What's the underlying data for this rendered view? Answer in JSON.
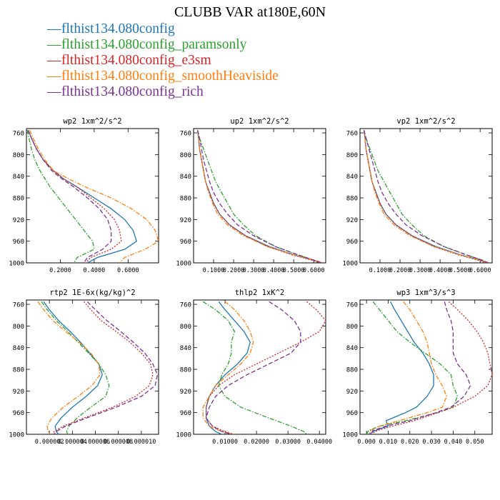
{
  "title": "CLUBB VAR at180E,60N",
  "legend": [
    {
      "label": "flthist134.080config",
      "color": "#1f77b4"
    },
    {
      "label": "flthist134.080config_paramsonly",
      "color": "#2ca02c"
    },
    {
      "label": "flthist134.080config_e3sm",
      "color": "#d62728"
    },
    {
      "label": "flthist134.080config_smoothHeaviside",
      "color": "#ff7f0e"
    },
    {
      "label": "flthist134.080config_rich",
      "color": "#7b3294"
    }
  ],
  "chart_data": [
    {
      "type": "line",
      "title": "wp2  1xm^2/s^2",
      "xlim": [
        0,
        0.78
      ],
      "ylim": [
        1000,
        752
      ],
      "y_reversed": true,
      "xticks": [
        0.2,
        0.4,
        0.6
      ],
      "xtick_labels": [
        "0.2000",
        "0.4000",
        "0.6000"
      ],
      "yticks": [
        760,
        800,
        840,
        880,
        920,
        960,
        1000
      ],
      "y": [
        755,
        770,
        790,
        810,
        830,
        845,
        860,
        880,
        900,
        920,
        940,
        960,
        975,
        990,
        1000
      ],
      "series": [
        {
          "name": "flthist134.080config",
          "color": "#1f77b4",
          "dash": "solid",
          "values": [
            0.01,
            0.03,
            0.06,
            0.1,
            0.16,
            0.22,
            0.3,
            0.4,
            0.5,
            0.58,
            0.63,
            0.65,
            0.58,
            0.42,
            0.36
          ]
        },
        {
          "name": "flthist134.080config_paramsonly",
          "color": "#2ca02c",
          "dash": "dashdot",
          "values": [
            0.005,
            0.015,
            0.03,
            0.05,
            0.08,
            0.11,
            0.14,
            0.19,
            0.24,
            0.29,
            0.34,
            0.39,
            0.4,
            0.3,
            0.28
          ]
        },
        {
          "name": "flthist134.080config_e3sm",
          "color": "#d62728",
          "dash": "dotted",
          "values": [
            0.01,
            0.03,
            0.06,
            0.1,
            0.16,
            0.22,
            0.3,
            0.38,
            0.46,
            0.52,
            0.55,
            0.56,
            0.5,
            0.38,
            0.35
          ]
        },
        {
          "name": "flthist134.080config_smoothHeaviside",
          "color": "#ff7f0e",
          "dash": "dashdot",
          "values": [
            0.02,
            0.04,
            0.07,
            0.11,
            0.16,
            0.25,
            0.35,
            0.5,
            0.62,
            0.71,
            0.76,
            0.78,
            0.7,
            0.58,
            0.55
          ]
        },
        {
          "name": "flthist134.080config_rich",
          "color": "#7b3294",
          "dash": "dashed",
          "values": [
            0.01,
            0.03,
            0.06,
            0.1,
            0.15,
            0.21,
            0.28,
            0.36,
            0.43,
            0.48,
            0.5,
            0.5,
            0.45,
            0.36,
            0.34
          ]
        }
      ]
    },
    {
      "type": "line",
      "title": "up2  1xm^2/s^2",
      "xlim": [
        0,
        0.66
      ],
      "ylim": [
        1000,
        752
      ],
      "y_reversed": true,
      "xticks": [
        0.1,
        0.2,
        0.3,
        0.4,
        0.5,
        0.6
      ],
      "xtick_labels": [
        "0.1000",
        "0.2000",
        "0.3000",
        "0.4000",
        "0.5000",
        "0.6000"
      ],
      "yticks": [
        760,
        800,
        840,
        880,
        920,
        960,
        1000
      ],
      "y": [
        755,
        770,
        790,
        810,
        830,
        850,
        870,
        890,
        910,
        930,
        950,
        970,
        985,
        995,
        1000
      ],
      "series": [
        {
          "name": "flthist134.080config",
          "color": "#1f77b4",
          "dash": "solid",
          "values": [
            0.02,
            0.025,
            0.03,
            0.04,
            0.05,
            0.06,
            0.08,
            0.1,
            0.13,
            0.18,
            0.26,
            0.38,
            0.5,
            0.6,
            0.64
          ]
        },
        {
          "name": "flthist134.080config_paramsonly",
          "color": "#2ca02c",
          "dash": "dashdot",
          "values": [
            0.02,
            0.03,
            0.05,
            0.07,
            0.09,
            0.11,
            0.14,
            0.17,
            0.2,
            0.25,
            0.31,
            0.41,
            0.52,
            0.6,
            0.63
          ]
        },
        {
          "name": "flthist134.080config_e3sm",
          "color": "#d62728",
          "dash": "dotted",
          "values": [
            0.02,
            0.025,
            0.03,
            0.04,
            0.05,
            0.06,
            0.08,
            0.1,
            0.13,
            0.18,
            0.26,
            0.37,
            0.49,
            0.59,
            0.63
          ]
        },
        {
          "name": "flthist134.080config_smoothHeaviside",
          "color": "#ff7f0e",
          "dash": "dashdot",
          "values": [
            0.02,
            0.025,
            0.03,
            0.04,
            0.05,
            0.06,
            0.075,
            0.095,
            0.12,
            0.17,
            0.25,
            0.37,
            0.5,
            0.6,
            0.65
          ]
        },
        {
          "name": "flthist134.080config_rich",
          "color": "#7b3294",
          "dash": "dashed",
          "values": [
            0.02,
            0.03,
            0.04,
            0.05,
            0.065,
            0.08,
            0.1,
            0.13,
            0.17,
            0.22,
            0.3,
            0.41,
            0.52,
            0.6,
            0.64
          ]
        }
      ]
    },
    {
      "type": "line",
      "title": "vp2  1xm^2/s^2",
      "xlim": [
        0,
        0.66
      ],
      "ylim": [
        1000,
        752
      ],
      "y_reversed": true,
      "xticks": [
        0.1,
        0.2,
        0.3,
        0.4,
        0.5,
        0.6
      ],
      "xtick_labels": [
        "0.1000",
        "0.2000",
        "0.3000",
        "0.4000",
        "0.5000",
        "0.6000"
      ],
      "yticks": [
        760,
        800,
        840,
        880,
        920,
        960,
        1000
      ],
      "y": [
        755,
        770,
        790,
        810,
        830,
        850,
        870,
        890,
        910,
        930,
        950,
        970,
        985,
        995,
        1000
      ],
      "series": [
        {
          "name": "flthist134.080config",
          "color": "#1f77b4",
          "dash": "solid",
          "values": [
            0.02,
            0.025,
            0.03,
            0.04,
            0.05,
            0.06,
            0.08,
            0.1,
            0.13,
            0.18,
            0.26,
            0.38,
            0.5,
            0.6,
            0.64
          ]
        },
        {
          "name": "flthist134.080config_paramsonly",
          "color": "#2ca02c",
          "dash": "dashdot",
          "values": [
            0.02,
            0.03,
            0.05,
            0.07,
            0.09,
            0.12,
            0.15,
            0.18,
            0.21,
            0.26,
            0.32,
            0.42,
            0.53,
            0.61,
            0.64
          ]
        },
        {
          "name": "flthist134.080config_e3sm",
          "color": "#d62728",
          "dash": "dotted",
          "values": [
            0.02,
            0.025,
            0.03,
            0.04,
            0.05,
            0.06,
            0.08,
            0.1,
            0.13,
            0.18,
            0.26,
            0.37,
            0.49,
            0.59,
            0.63
          ]
        },
        {
          "name": "flthist134.080config_smoothHeaviside",
          "color": "#ff7f0e",
          "dash": "dashdot",
          "values": [
            0.02,
            0.025,
            0.03,
            0.04,
            0.05,
            0.06,
            0.075,
            0.095,
            0.12,
            0.17,
            0.25,
            0.37,
            0.5,
            0.6,
            0.65
          ]
        },
        {
          "name": "flthist134.080config_rich",
          "color": "#7b3294",
          "dash": "dashed",
          "values": [
            0.02,
            0.03,
            0.045,
            0.06,
            0.075,
            0.09,
            0.11,
            0.14,
            0.18,
            0.23,
            0.31,
            0.42,
            0.53,
            0.61,
            0.64
          ]
        }
      ]
    },
    {
      "type": "line",
      "title": "rtp2  1E-6x(kg/kg)^2",
      "xlim": [
        0,
        1.15e-05
      ],
      "ylim": [
        1000,
        752
      ],
      "y_reversed": true,
      "xticks": [
        2e-06,
        4e-06,
        6e-06,
        8e-06,
        1e-05
      ],
      "xtick_labels": [
        "0.000002",
        "0.000004",
        "0.000006",
        "0.000008",
        "0.000010"
      ],
      "yticks": [
        760,
        800,
        840,
        880,
        920,
        960,
        1000
      ],
      "y": [
        755,
        770,
        790,
        810,
        830,
        850,
        870,
        890,
        910,
        930,
        950,
        970,
        985,
        995,
        1000
      ],
      "series": [
        {
          "name": "flthist134.080config",
          "color": "#1f77b4",
          "dash": "solid",
          "values": [
            1.5e-06,
            2e-06,
            2.8e-06,
            3.8e-06,
            4.7e-06,
            5.5e-06,
            6.3e-06,
            6.6e-06,
            6.2e-06,
            5.2e-06,
            4e-06,
            3e-06,
            2.5e-06,
            2.6e-06,
            2.8e-06
          ]
        },
        {
          "name": "flthist134.080config_paramsonly",
          "color": "#2ca02c",
          "dash": "dashdot",
          "values": [
            1.3e-06,
            1.8e-06,
            2.6e-06,
            3.6e-06,
            4.5e-06,
            5.4e-06,
            6.3e-06,
            6.9e-06,
            7.2e-06,
            6.9e-06,
            5.6e-06,
            4.4e-06,
            3.7e-06,
            3.5e-06,
            3.6e-06
          ]
        },
        {
          "name": "flthist134.080config_e3sm",
          "color": "#d62728",
          "dash": "dotted",
          "values": [
            5e-06,
            5.6e-06,
            6.5e-06,
            7.8e-06,
            9e-06,
            1e-05,
            1.08e-05,
            1.1e-05,
            1.07e-05,
            9.5e-06,
            7.5e-06,
            5e-06,
            3.2e-06,
            2.4e-06,
            2.3e-06
          ]
        },
        {
          "name": "flthist134.080config_smoothHeaviside",
          "color": "#ff7f0e",
          "dash": "dashdot",
          "values": [
            1e-06,
            1.5e-06,
            2.3e-06,
            3.4e-06,
            4.6e-06,
            5.6e-06,
            6.3e-06,
            6.4e-06,
            5.7e-06,
            4.5e-06,
            3.2e-06,
            2.2e-06,
            1.8e-06,
            1.9e-06,
            2e-06
          ]
        },
        {
          "name": "flthist134.080config_rich",
          "color": "#7b3294",
          "dash": "dashed",
          "values": [
            5.3e-06,
            6e-06,
            7e-06,
            8.2e-06,
            9.3e-06,
            1.03e-05,
            1.1e-05,
            1.14e-05,
            1.12e-05,
            1e-05,
            7.8e-06,
            5.2e-06,
            3.4e-06,
            2.6e-06,
            2.4e-06
          ]
        }
      ]
    },
    {
      "type": "line",
      "title": "thlp2  1xK^2",
      "xlim": [
        0,
        0.042
      ],
      "ylim": [
        1000,
        752
      ],
      "y_reversed": true,
      "xticks": [
        0.01,
        0.02,
        0.03,
        0.04
      ],
      "xtick_labels": [
        "0.01000",
        "0.02000",
        "0.03000",
        "0.04000"
      ],
      "yticks": [
        760,
        800,
        840,
        880,
        920,
        960,
        1000
      ],
      "y": [
        755,
        770,
        790,
        810,
        830,
        850,
        870,
        890,
        910,
        930,
        950,
        970,
        985,
        995,
        1000
      ],
      "series": [
        {
          "name": "flthist134.080config",
          "color": "#1f77b4",
          "dash": "solid",
          "values": [
            0.008,
            0.01,
            0.013,
            0.016,
            0.018,
            0.017,
            0.014,
            0.01,
            0.007,
            0.005,
            0.004,
            0.004,
            0.005,
            0.007,
            0.009
          ]
        },
        {
          "name": "flthist134.080config_paramsonly",
          "color": "#2ca02c",
          "dash": "dashdot",
          "values": [
            0.003,
            0.007,
            0.011,
            0.013,
            0.012,
            0.012,
            0.011,
            0.009,
            0.008,
            0.01,
            0.015,
            0.024,
            0.031,
            0.035,
            0.036
          ]
        },
        {
          "name": "flthist134.080config_e3sm",
          "color": "#d62728",
          "dash": "dotted",
          "values": [
            0.036,
            0.039,
            0.042,
            0.04,
            0.034,
            0.027,
            0.02,
            0.013,
            0.008,
            0.005,
            0.004,
            0.004,
            0.006,
            0.01,
            0.013
          ]
        },
        {
          "name": "flthist134.080config_smoothHeaviside",
          "color": "#ff7f0e",
          "dash": "dashdot",
          "values": [
            0.01,
            0.013,
            0.016,
            0.018,
            0.019,
            0.018,
            0.015,
            0.011,
            0.007,
            0.005,
            0.003,
            0.003,
            0.005,
            0.009,
            0.013
          ]
        },
        {
          "name": "flthist134.080config_rich",
          "color": "#7b3294",
          "dash": "dashed",
          "values": [
            0.024,
            0.028,
            0.032,
            0.034,
            0.034,
            0.031,
            0.024,
            0.017,
            0.011,
            0.007,
            0.005,
            0.004,
            0.006,
            0.009,
            0.012
          ]
        }
      ]
    },
    {
      "type": "line",
      "title": "wp3  1xm^3/s^3",
      "xlim": [
        -0.003,
        0.058
      ],
      "ylim": [
        1000,
        752
      ],
      "y_reversed": true,
      "xticks": [
        0,
        0.01,
        0.02,
        0.03,
        0.04,
        0.05
      ],
      "xtick_labels": [
        "0.000",
        "0.010",
        "0.020",
        "0.030",
        "0.040",
        "0.050"
      ],
      "yticks": [
        760,
        800,
        840,
        880,
        920,
        960,
        1000
      ],
      "y": [
        755,
        770,
        790,
        810,
        830,
        850,
        870,
        890,
        910,
        930,
        950,
        960,
        975,
        985,
        993,
        1000
      ],
      "series": [
        {
          "name": "flthist134.080config",
          "color": "#1f77b4",
          "dash": "solid",
          "values": [
            0.011,
            0.013,
            0.016,
            0.019,
            0.022,
            0.026,
            0.029,
            0.031,
            0.031,
            0.028,
            0.023,
            0.018,
            0.009,
            0.01,
            0.004,
            0.001
          ]
        },
        {
          "name": "flthist134.080config_paramsonly",
          "color": "#2ca02c",
          "dash": "dashdot",
          "values": [
            0.003,
            0.006,
            0.01,
            0.014,
            0.02,
            0.027,
            0.034,
            0.039,
            0.04,
            0.042,
            0.04,
            0.033,
            0.018,
            0.006,
            0.001,
            0
          ]
        },
        {
          "name": "flthist134.080config_e3sm",
          "color": "#d62728",
          "dash": "dotted",
          "values": [
            0.038,
            0.042,
            0.047,
            0.051,
            0.054,
            0.056,
            0.057,
            0.058,
            0.056,
            0.05,
            0.04,
            0.033,
            0.022,
            0.012,
            0.005,
            0.002
          ]
        },
        {
          "name": "flthist134.080config_smoothHeaviside",
          "color": "#ff7f0e",
          "dash": "dashdot",
          "values": [
            0.017,
            0.02,
            0.023,
            0.026,
            0.028,
            0.029,
            0.03,
            0.032,
            0.035,
            0.037,
            0.035,
            0.028,
            0.015,
            0.006,
            0.002,
            0.001
          ]
        },
        {
          "name": "flthist134.080config_rich",
          "color": "#7b3294",
          "dash": "dashed",
          "values": [
            0.036,
            0.037,
            0.039,
            0.04,
            0.04,
            0.04,
            0.042,
            0.046,
            0.048,
            0.045,
            0.039,
            0.032,
            0.02,
            0.009,
            0.003,
            0.002
          ]
        }
      ]
    }
  ]
}
